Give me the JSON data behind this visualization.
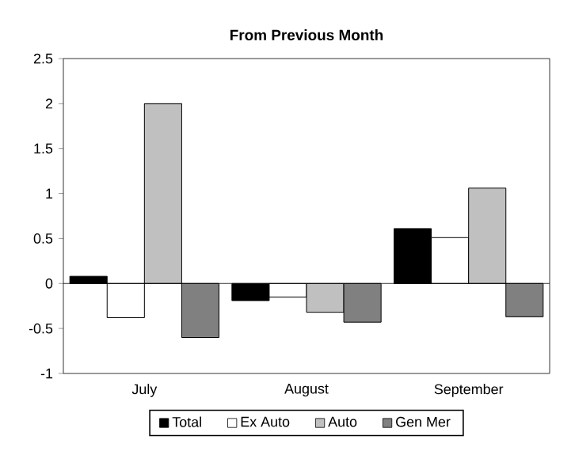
{
  "chart_data": {
    "type": "bar",
    "title": "From Previous Month",
    "categories": [
      "July",
      "August",
      "September"
    ],
    "series": [
      {
        "name": "Total",
        "color": "#000000",
        "values": [
          0.08,
          -0.19,
          0.61
        ]
      },
      {
        "name": "Ex Auto",
        "color": "#ffffff",
        "values": [
          -0.38,
          -0.15,
          0.51
        ]
      },
      {
        "name": "Auto",
        "color": "#c0c0c0",
        "values": [
          2.0,
          -0.32,
          1.06
        ]
      },
      {
        "name": "Gen Mer",
        "color": "#808080",
        "values": [
          -0.6,
          -0.43,
          -0.37
        ]
      }
    ],
    "ylim": [
      -1,
      2.5
    ],
    "yticks": [
      -1,
      -0.5,
      0,
      0.5,
      1,
      1.5,
      2,
      2.5
    ],
    "legend": "bottom"
  }
}
